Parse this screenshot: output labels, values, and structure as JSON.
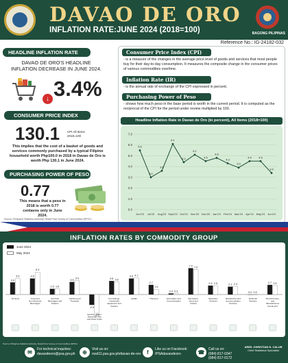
{
  "header": {
    "title": "DAVAO DE ORO",
    "subtitle": "INFLATION RATE:JUNE 2024 (2018=100)",
    "brand": "BAGONG PILIPINAS",
    "reference": "Reference No.: IG-24182-032"
  },
  "headline": {
    "label": "HEADLINE INFLATION RATE",
    "text": "DAVAO DE ORO'S HEADLINE INFLATION DECREASE IN JUNE 2024.",
    "rate": "3.4%"
  },
  "cpi": {
    "label": "CONSUMER PRICE INDEX",
    "value": "130.1",
    "note_line1": "CPI All Items",
    "note_line2": "2018=100",
    "desc": "This implies that the cost of a basket of goods and services commonly purchased by a typical Filipino household worth Php100.0 in 2018 in Davao de Oro is worth Php 130.1 in June 2024."
  },
  "ppp": {
    "label": "PURCHASING POWER OF PESO",
    "value": "0.77",
    "desc": "This means that a peso in 2018 is worth 0.77 centavos only in June 2024.",
    "source": "Source: Philippine Statistics Authority, Retail Price Survey of Commodities (RPSC)"
  },
  "definitions": [
    {
      "title": "Consumer Price Index (CPI)",
      "text": "- is a measure of the changes in the average price level of goods and services that most people buy for their day-to-day consumption. It measures the composite change in the consumer prices of various commodities overtime."
    },
    {
      "title": "Inflation Rate (IR)",
      "text": "- is the annual rate of exchange of the CPI expressed in percent."
    },
    {
      "title": "Purchasing Power of Peso (PPP)",
      "text": "- shows how much peso in the base period is worth in the current period. It is computed as the reciprocal of the CPI for the period under review multiplied by 100."
    }
  ],
  "colors": {
    "brand_green": "#1f4e3c",
    "gold": "#f1d488",
    "line": "#1f4e3c",
    "chart_bg": "#d7ecd6",
    "bar_june": "#1a1a1a",
    "bar_may": "#ffffff",
    "down_arrow": "#d42d2d"
  },
  "chart_data": [
    {
      "type": "line",
      "title": "Headline Inflation Rate in Davao de Oro (in percent), All Items (2018=100)",
      "categories": [
        "Jun'23",
        "Jul'23",
        "Aug'23",
        "Sept'23",
        "Oct'23",
        "Nov'23",
        "Dec'23",
        "Jan'24",
        "Feb'24",
        "Mar'24",
        "Apr'24",
        "May'24",
        "Jun'24"
      ],
      "values": [
        5.5,
        3.0,
        3.6,
        6.1,
        4.4,
        5.1,
        4.5,
        4.8,
        4.3,
        3.9,
        4.5,
        4.5,
        3.4
      ],
      "yticks": [
        "7.0",
        "6.0",
        "5.0",
        "4.0",
        "3.0",
        "2.0",
        "1.0",
        "0.0"
      ],
      "ylim": [
        0,
        7
      ],
      "grid": true
    },
    {
      "type": "bar",
      "title": "INFLATION RATES BY COMMODITY GROUP",
      "categories": [
        "All Items",
        "Food and Non-Alcoholic Beverages",
        "Alcoholic Beverages and Tobacco",
        "Clothing and Footwear",
        "Housing, Water, Electricity, Gas and Other Fuels",
        "Furnishings, Household Equipment and Routine Household Maintenance",
        "Health",
        "Transport",
        "Information and Communication",
        "Recreation, Sport and Culture",
        "Education Services",
        "Restaurants and Accommodation Services",
        "Financial Services",
        "Personal Care, and Miscellaneous Goods and Services"
      ],
      "series": [
        {
          "name": "June 2024",
          "values": [
            3.4,
            4.5,
            1.6,
            3.5,
            -2.9,
            3.8,
            4.5,
            2.7,
            0.3,
            7.4,
            2.5,
            2.2,
            0.0,
            2.7
          ]
        },
        {
          "name": "May 2024",
          "values": [
            4.5,
            6.3,
            1.6,
            3.9,
            -5.2,
            3.6,
            4.7,
            1.5,
            0.3,
            7.0,
            2.5,
            2.3,
            0.0,
            2.5
          ]
        }
      ],
      "value_labels": {
        "June 2024": [
          "3.4",
          "4.5",
          "1.6",
          "3.5",
          "-2.9",
          "3.8",
          "4.5",
          "2.7",
          "0.3",
          "7.4",
          "2.5",
          "2.2",
          "0.0",
          "2.7"
        ],
        "May 2024": [
          "4.5",
          "6.3",
          "1.6",
          "3.9",
          "-5.2",
          "3.6",
          "4.7",
          "1.5",
          "0.3",
          "7.0",
          "2.5",
          "2.3",
          "0.0",
          "2.5"
        ]
      },
      "legend": "top-left"
    }
  ],
  "footer": {
    "source": "Source: Philippine Statistics Authority, Retail Price Survey of Commodities (RPSC)",
    "email_label": "For technical inquiries:",
    "email": "davaodeoro@psa.gov.ph",
    "web_label": "Visit us on:",
    "web": "rssd11.psa.gov.ph/davao-de-oro",
    "fb_label": "Like us on Facebook:",
    "fb": "/PSAdavaodeoro",
    "phone_label": "Call us on:",
    "phone1": "(084) 817-0347",
    "phone2": "(084) 817-0172",
    "signatory": "ARIEL CHRISTIAN N. CALUB",
    "signatory_title": "Chief Statistical Specialist"
  }
}
